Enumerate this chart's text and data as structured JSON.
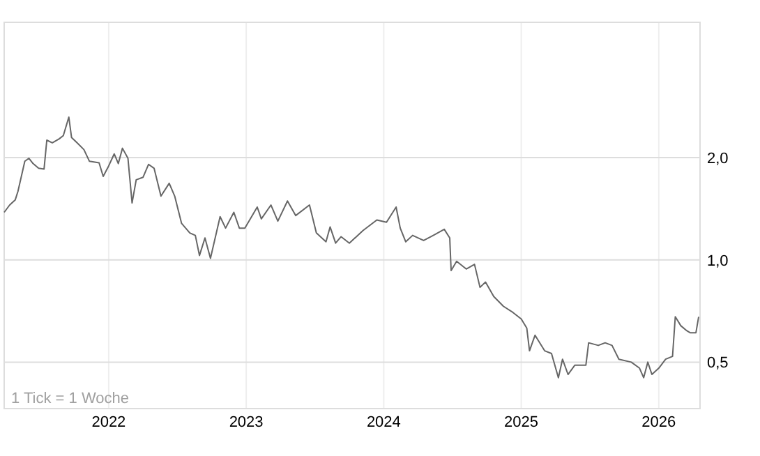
{
  "chart_data": {
    "type": "line",
    "log": "y",
    "grid": true,
    "marker": "none",
    "line_style": "solid",
    "annotations": [
      "1 Tick = 1 Woche"
    ],
    "xlim": [
      2021.24,
      2026.3
    ],
    "xticks": [
      2022,
      2023,
      2024,
      2025,
      2026
    ],
    "ylim": [
      0.365,
      5
    ],
    "yticks": [
      {
        "value": 0.5,
        "label": "0,5"
      },
      {
        "value": 1,
        "label": "1,0"
      },
      {
        "value": 2,
        "label": "2,0"
      }
    ],
    "series": [
      {
        "color": "#666666",
        "x": [
          2021.24,
          2021.28,
          2021.32,
          2021.34,
          2021.39,
          2021.42,
          2021.45,
          2021.49,
          2021.53,
          2021.55,
          2021.59,
          2021.64,
          2021.67,
          2021.71,
          2021.73,
          2021.77,
          2021.82,
          2021.86,
          2021.93,
          2021.96,
          2022.0,
          2022.04,
          2022.07,
          2022.1,
          2022.14,
          2022.17,
          2022.2,
          2022.25,
          2022.29,
          2022.33,
          2022.38,
          2022.44,
          2022.48,
          2022.53,
          2022.59,
          2022.63,
          2022.66,
          2022.7,
          2022.74,
          2022.81,
          2022.85,
          2022.91,
          2022.95,
          2022.99,
          2023.08,
          2023.11,
          2023.18,
          2023.23,
          2023.3,
          2023.36,
          2023.46,
          2023.51,
          2023.58,
          2023.61,
          2023.65,
          2023.69,
          2023.75,
          2023.85,
          2023.95,
          2024.02,
          2024.09,
          2024.12,
          2024.16,
          2024.21,
          2024.29,
          2024.36,
          2024.44,
          2024.48,
          2024.49,
          2024.53,
          2024.6,
          2024.66,
          2024.7,
          2024.74,
          2024.8,
          2024.87,
          2024.94,
          2025.0,
          2025.04,
          2025.06,
          2025.1,
          2025.17,
          2025.22,
          2025.27,
          2025.3,
          2025.34,
          2025.39,
          2025.47,
          2025.49,
          2025.56,
          2025.61,
          2025.66,
          2025.71,
          2025.8,
          2025.86,
          2025.89,
          2025.92,
          2025.95,
          2026.0,
          2026.05,
          2026.1,
          2026.12,
          2026.16,
          2026.2,
          2026.23,
          2026.27,
          2026.29
        ],
        "values": [
          1.38,
          1.45,
          1.5,
          1.59,
          1.95,
          1.99,
          1.92,
          1.86,
          1.85,
          2.25,
          2.21,
          2.27,
          2.32,
          2.63,
          2.29,
          2.21,
          2.11,
          1.95,
          1.93,
          1.76,
          1.89,
          2.05,
          1.92,
          2.13,
          1.99,
          1.47,
          1.72,
          1.75,
          1.91,
          1.86,
          1.54,
          1.68,
          1.54,
          1.28,
          1.2,
          1.18,
          1.03,
          1.16,
          1.01,
          1.34,
          1.24,
          1.38,
          1.24,
          1.24,
          1.43,
          1.32,
          1.45,
          1.3,
          1.49,
          1.35,
          1.45,
          1.2,
          1.13,
          1.25,
          1.12,
          1.17,
          1.12,
          1.22,
          1.31,
          1.29,
          1.43,
          1.24,
          1.13,
          1.18,
          1.14,
          1.18,
          1.23,
          1.16,
          0.93,
          0.99,
          0.94,
          0.97,
          0.83,
          0.86,
          0.78,
          0.73,
          0.7,
          0.67,
          0.63,
          0.54,
          0.6,
          0.54,
          0.53,
          0.45,
          0.51,
          0.46,
          0.49,
          0.49,
          0.57,
          0.56,
          0.57,
          0.56,
          0.51,
          0.5,
          0.48,
          0.45,
          0.5,
          0.46,
          0.48,
          0.51,
          0.52,
          0.68,
          0.64,
          0.62,
          0.61,
          0.61,
          0.68
        ]
      }
    ]
  }
}
